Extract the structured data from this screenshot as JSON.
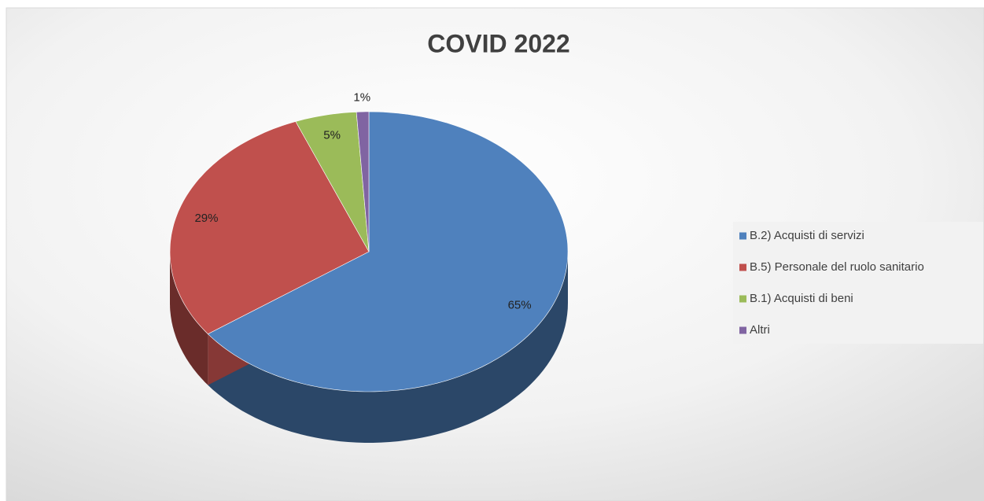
{
  "chart_data": {
    "type": "pie3d",
    "title": "COVID 2022",
    "categories": [
      "B.2) Acquisti di servizi",
      "B.5) Personale del ruolo sanitario",
      "B.1) Acquisti di beni",
      "Altri"
    ],
    "values": [
      65,
      29,
      5,
      1
    ],
    "value_labels": [
      "65%",
      "29%",
      "5%",
      "1%"
    ],
    "colors": [
      "#4f81bd",
      "#c0504d",
      "#9bbb59",
      "#8064a2"
    ],
    "legend": "right"
  }
}
